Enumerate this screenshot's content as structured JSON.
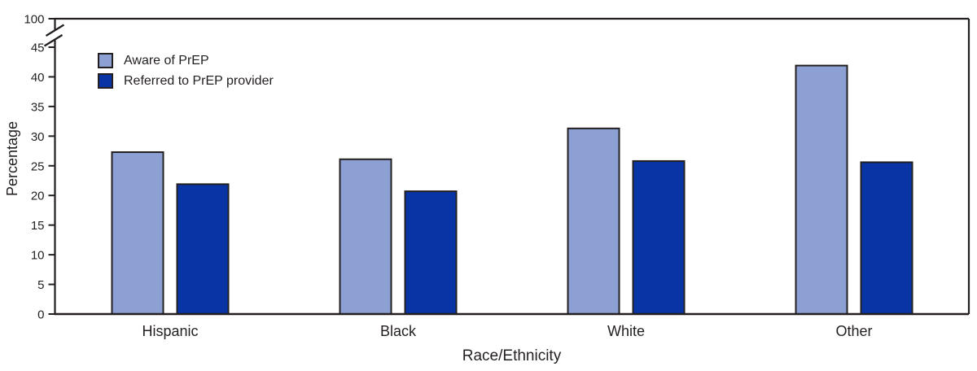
{
  "chart_data": {
    "type": "bar",
    "title": "",
    "categories": [
      "Hispanic",
      "Black",
      "White",
      "Other"
    ],
    "series": [
      {
        "name": "Aware of PrEP",
        "color": "#8CA0D4",
        "values": [
          27.3,
          26.1,
          31.3,
          41.9
        ]
      },
      {
        "name": "Referred to PrEP provider",
        "color": "#0834A6",
        "values": [
          21.9,
          20.7,
          25.8,
          25.6
        ]
      }
    ],
    "xlabel": "Race/Ethnicity",
    "ylabel": "Percentage",
    "y_axis": {
      "ticks": [
        0,
        5,
        10,
        15,
        20,
        25,
        30,
        35,
        40,
        45
      ],
      "top_tick": 100,
      "axis_break": true,
      "break_between": [
        45,
        100
      ]
    },
    "legend_position": "top-left-inside",
    "grid": false
  },
  "colors": {
    "axis": "#231f20",
    "text": "#231f20",
    "background": "#ffffff"
  }
}
